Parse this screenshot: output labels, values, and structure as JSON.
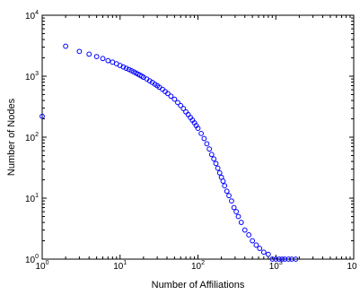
{
  "chart_data": {
    "type": "scatter",
    "xlabel": "Number of Affiliations",
    "ylabel": "Number of Nodes",
    "xscale": "log",
    "yscale": "log",
    "xlim": [
      1,
      10000
    ],
    "ylim": [
      1,
      10000
    ],
    "xticks": [
      {
        "base": "10",
        "exp": "0"
      },
      {
        "base": "10",
        "exp": "1"
      },
      {
        "base": "10",
        "exp": "2"
      },
      {
        "base": "10",
        "exp": "3"
      },
      {
        "base": "10",
        "exp": ""
      }
    ],
    "yticks": [
      {
        "base": "10",
        "exp": "0"
      },
      {
        "base": "10",
        "exp": "1"
      },
      {
        "base": "10",
        "exp": "2"
      },
      {
        "base": "10",
        "exp": "3"
      },
      {
        "base": "10",
        "exp": "4"
      }
    ],
    "marker": "circle",
    "marker_color": "#0000ff",
    "grid": false,
    "series": [
      {
        "points": [
          [
            1,
            220
          ],
          [
            2,
            3100
          ],
          [
            3,
            2550
          ],
          [
            4,
            2300
          ],
          [
            5,
            2100
          ],
          [
            6,
            1950
          ],
          [
            7,
            1800
          ],
          [
            8,
            1700
          ],
          [
            9,
            1600
          ],
          [
            10,
            1500
          ],
          [
            11,
            1420
          ],
          [
            12,
            1350
          ],
          [
            13,
            1290
          ],
          [
            14,
            1230
          ],
          [
            15,
            1180
          ],
          [
            16,
            1130
          ],
          [
            17,
            1080
          ],
          [
            18,
            1040
          ],
          [
            19,
            1000
          ],
          [
            20,
            960
          ],
          [
            22,
            900
          ],
          [
            24,
            840
          ],
          [
            26,
            790
          ],
          [
            28,
            740
          ],
          [
            30,
            700
          ],
          [
            32,
            660
          ],
          [
            35,
            610
          ],
          [
            38,
            560
          ],
          [
            41,
            520
          ],
          [
            45,
            470
          ],
          [
            50,
            420
          ],
          [
            55,
            370
          ],
          [
            60,
            330
          ],
          [
            65,
            295
          ],
          [
            70,
            260
          ],
          [
            75,
            235
          ],
          [
            80,
            210
          ],
          [
            85,
            190
          ],
          [
            90,
            172
          ],
          [
            95,
            155
          ],
          [
            100,
            140
          ],
          [
            110,
            115
          ],
          [
            120,
            95
          ],
          [
            130,
            78
          ],
          [
            140,
            64
          ],
          [
            150,
            52
          ],
          [
            160,
            44
          ],
          [
            170,
            37
          ],
          [
            180,
            31
          ],
          [
            190,
            26
          ],
          [
            200,
            22
          ],
          [
            210,
            19
          ],
          [
            220,
            16
          ],
          [
            235,
            13
          ],
          [
            250,
            11
          ],
          [
            270,
            9
          ],
          [
            290,
            7
          ],
          [
            310,
            6
          ],
          [
            330,
            5
          ],
          [
            360,
            4
          ],
          [
            400,
            3
          ],
          [
            450,
            2.5
          ],
          [
            500,
            2
          ],
          [
            560,
            1.7
          ],
          [
            620,
            1.5
          ],
          [
            700,
            1.3
          ],
          [
            800,
            1.2
          ],
          [
            900,
            1
          ],
          [
            1000,
            1
          ],
          [
            1100,
            1
          ],
          [
            1200,
            1
          ],
          [
            1300,
            1
          ],
          [
            1450,
            1
          ],
          [
            1600,
            1
          ],
          [
            1800,
            1
          ]
        ]
      }
    ]
  }
}
